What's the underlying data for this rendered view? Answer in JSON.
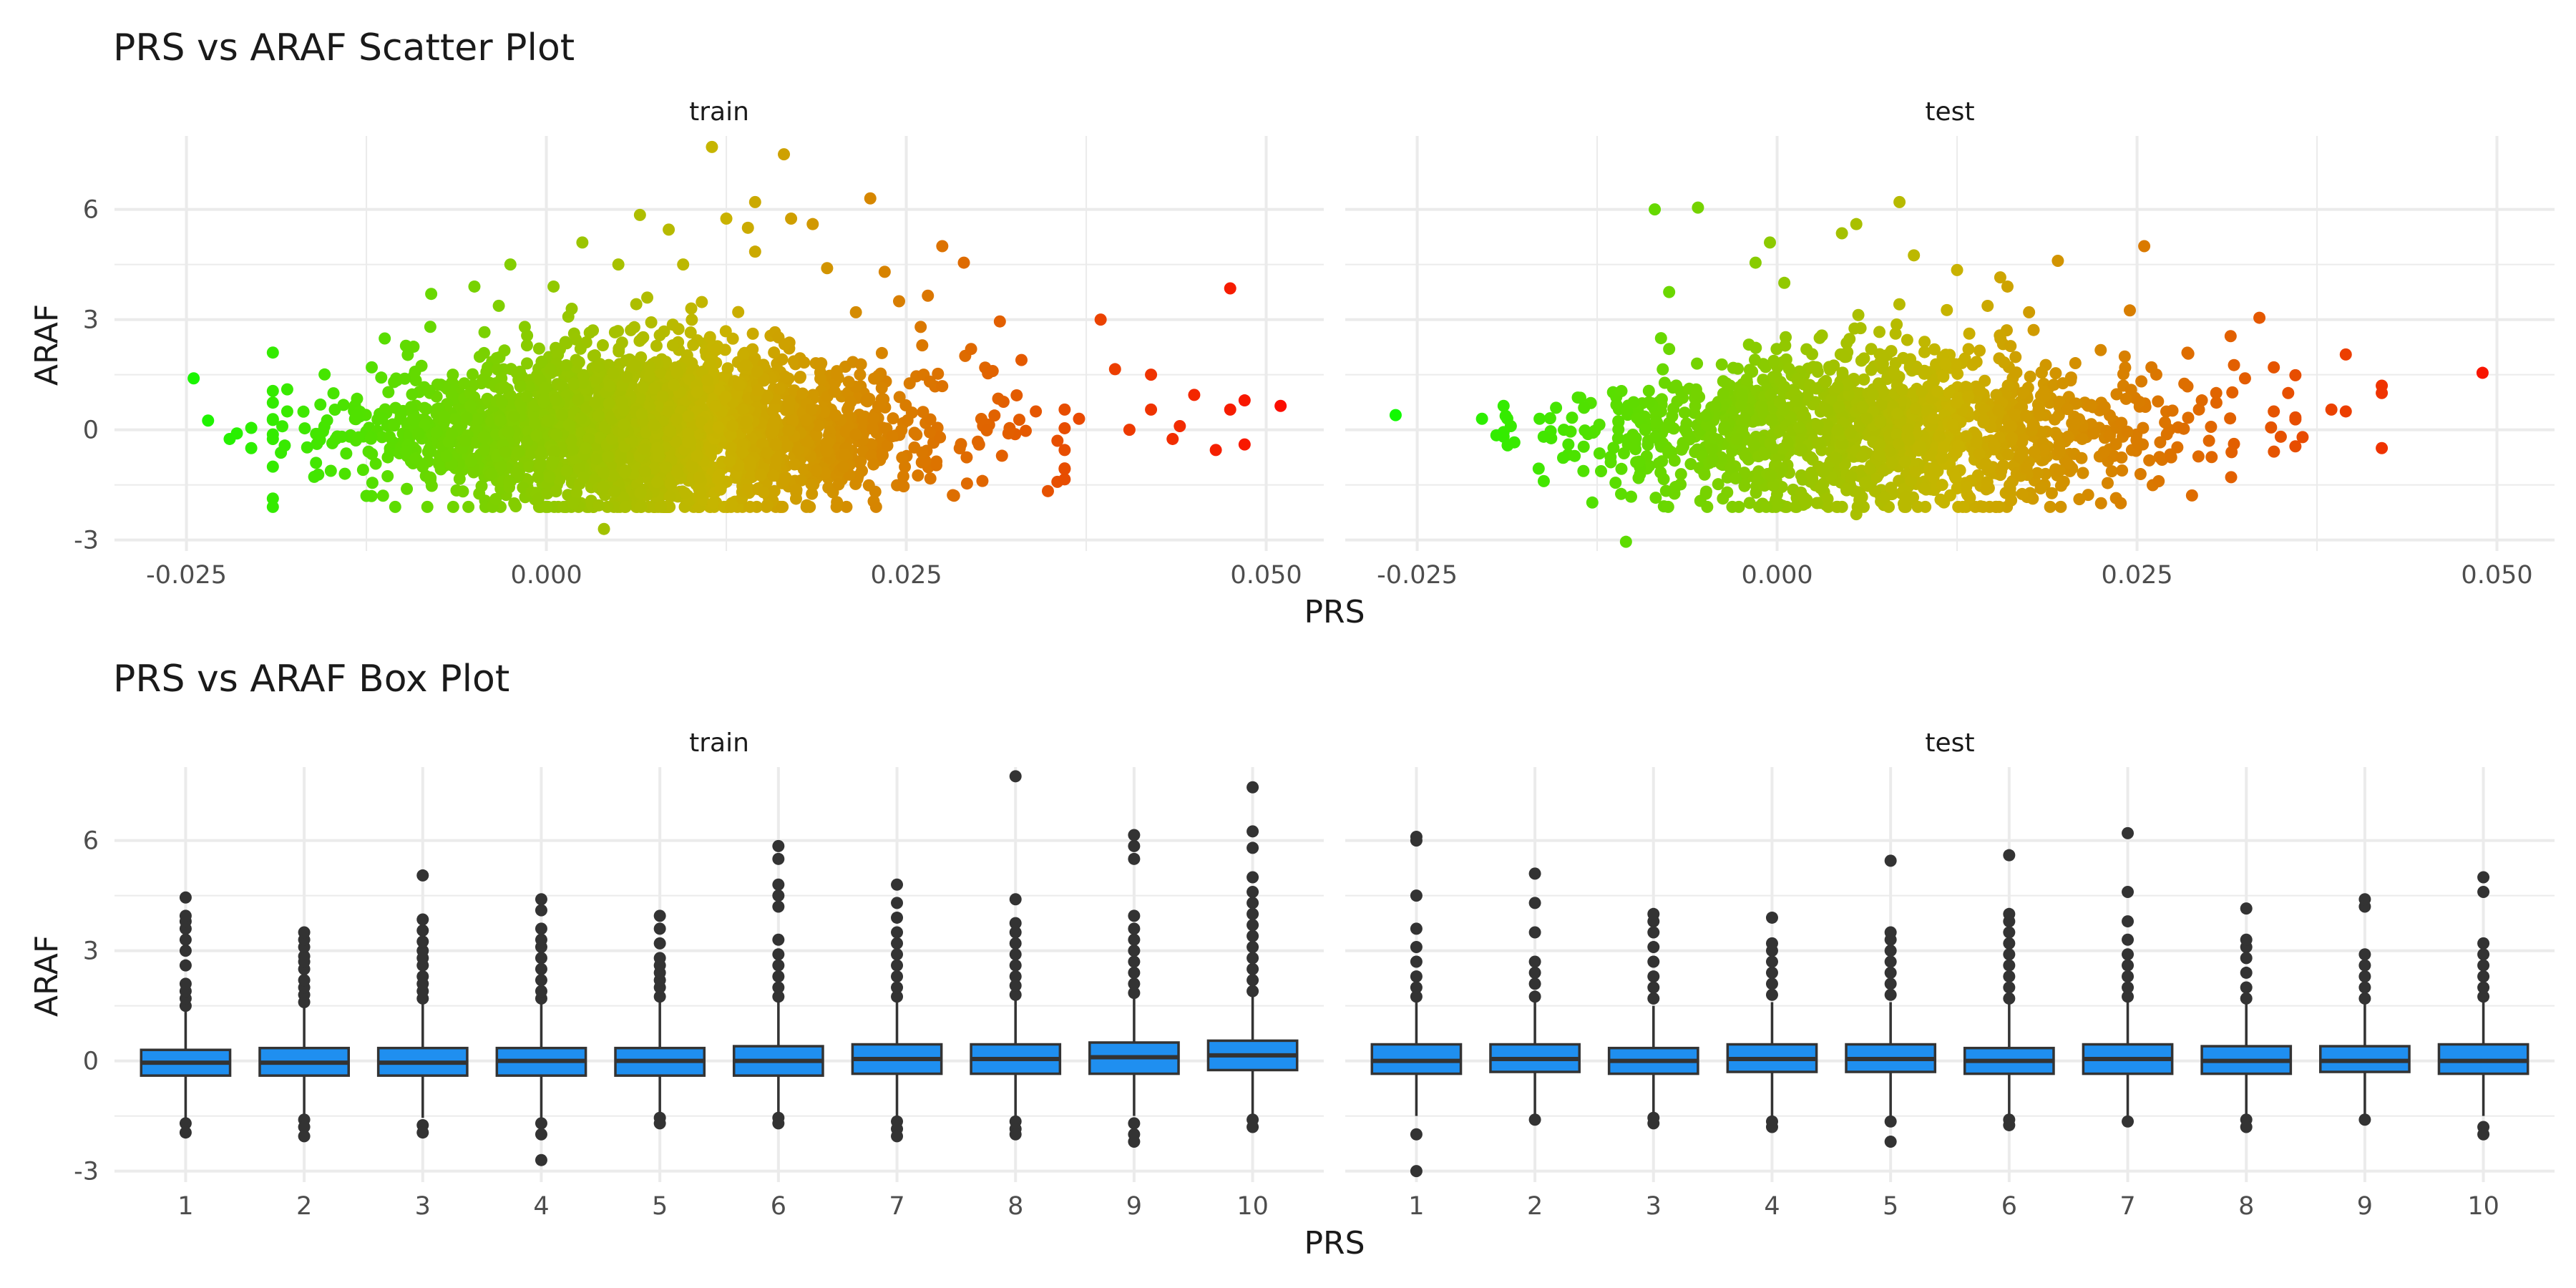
{
  "titles": {
    "scatter": "PRS vs ARAF Scatter Plot",
    "box": "PRS vs ARAF Box Plot"
  },
  "panels": {
    "train": "train",
    "test": "test"
  },
  "axes": {
    "x_label": "PRS",
    "y_label": "ARAF"
  },
  "colors": {
    "gradient_low": "#00ff00",
    "gradient_mid": "#c8b400",
    "gradient_high": "#ff0000",
    "box_fill": "#1f8ff0",
    "box_line": "#333333",
    "outlier": "#333333",
    "grid": "#ebebeb"
  },
  "chart_data": [
    {
      "type": "scatter",
      "title": "PRS vs ARAF Scatter Plot",
      "xlabel": "PRS",
      "ylabel": "ARAF",
      "facets": [
        "train",
        "test"
      ],
      "xlim": [
        -0.03,
        0.054
      ],
      "ylim": [
        -3.3,
        8.0
      ],
      "x_ticks": [
        -0.025,
        0.0,
        0.025,
        0.05
      ],
      "x_tick_labels": [
        "-0.025",
        "0.000",
        "0.025",
        "0.050"
      ],
      "y_ticks": [
        -3,
        0,
        3,
        6
      ],
      "y_tick_labels": [
        "-3",
        "0",
        "3",
        "6"
      ],
      "grid": true,
      "color_by": "PRS",
      "color_gradient": [
        "#00ff00",
        "#c8b400",
        "#ff0000"
      ],
      "series": [
        {
          "name": "train",
          "points": [
            [
              -0.0245,
              1.4
            ],
            [
              -0.0235,
              0.25
            ],
            [
              -0.022,
              -0.25
            ],
            [
              -0.0215,
              -0.1
            ],
            [
              -0.0205,
              -0.5
            ],
            [
              -0.0205,
              0.05
            ],
            [
              -0.018,
              0.5
            ],
            [
              -0.018,
              1.1
            ],
            [
              -0.016,
              -0.9
            ],
            [
              -0.0125,
              -1.8
            ],
            [
              -0.008,
              3.7
            ],
            [
              -0.0065,
              1.5
            ],
            [
              -0.005,
              3.9
            ],
            [
              -0.0025,
              4.5
            ],
            [
              -0.0015,
              2.8
            ],
            [
              0.0005,
              3.9
            ],
            [
              0.0025,
              5.1
            ],
            [
              0.004,
              -2.7
            ],
            [
              0.005,
              4.5
            ],
            [
              0.0065,
              5.85
            ],
            [
              0.0085,
              5.45
            ],
            [
              0.0095,
              4.5
            ],
            [
              0.0115,
              7.7
            ],
            [
              0.0125,
              5.75
            ],
            [
              0.014,
              5.5
            ],
            [
              0.0145,
              4.85
            ],
            [
              0.0145,
              6.2
            ],
            [
              0.0165,
              7.5
            ],
            [
              0.017,
              5.75
            ],
            [
              0.0185,
              5.6
            ],
            [
              0.0195,
              4.4
            ],
            [
              0.0225,
              6.3
            ],
            [
              0.0235,
              4.3
            ],
            [
              0.0245,
              3.5
            ],
            [
              0.0265,
              3.65
            ],
            [
              0.0275,
              5.0
            ],
            [
              0.029,
              4.55
            ],
            [
              0.0315,
              2.95
            ],
            [
              0.033,
              1.9
            ],
            [
              0.034,
              0.5
            ],
            [
              0.0385,
              3.0
            ],
            [
              0.0395,
              1.65
            ],
            [
              0.0405,
              0.0
            ],
            [
              0.042,
              1.5
            ],
            [
              0.042,
              0.55
            ],
            [
              0.0435,
              -0.25
            ],
            [
              0.044,
              0.1
            ],
            [
              0.045,
              0.95
            ],
            [
              0.0465,
              -0.55
            ],
            [
              0.0475,
              0.55
            ],
            [
              0.0475,
              3.85
            ],
            [
              0.0485,
              -0.4
            ],
            [
              0.0485,
              0.8
            ],
            [
              0.051,
              0.65
            ],
            [
              0.0355,
              -0.3
            ],
            [
              0.037,
              0.3
            ],
            [
              0.0295,
              2.2
            ],
            [
              0.031,
              1.6
            ],
            [
              0.026,
              2.8
            ],
            [
              0.0215,
              3.2
            ]
          ]
        },
        {
          "name": "test",
          "points": [
            [
              -0.0265,
              0.4
            ],
            [
              -0.0205,
              0.3
            ],
            [
              -0.0195,
              -0.15
            ],
            [
              -0.0185,
              0.1
            ],
            [
              -0.0165,
              0.3
            ],
            [
              -0.0145,
              -0.4
            ],
            [
              -0.0105,
              -3.05
            ],
            [
              -0.0085,
              6.0
            ],
            [
              -0.0075,
              3.75
            ],
            [
              -0.0075,
              2.2
            ],
            [
              -0.0055,
              6.05
            ],
            [
              -0.0045,
              -0.8
            ],
            [
              -0.0015,
              4.55
            ],
            [
              -0.0005,
              5.1
            ],
            [
              0.0005,
              4.0
            ],
            [
              0.002,
              -2.0
            ],
            [
              0.0045,
              5.35
            ],
            [
              0.0055,
              5.6
            ],
            [
              0.0055,
              -2.3
            ],
            [
              0.0085,
              6.2
            ],
            [
              0.0095,
              4.75
            ],
            [
              0.0125,
              4.35
            ],
            [
              0.0155,
              4.15
            ],
            [
              0.016,
              3.9
            ],
            [
              0.0175,
              3.2
            ],
            [
              0.0195,
              4.6
            ],
            [
              0.022,
              -0.1
            ],
            [
              0.0225,
              -2.0
            ],
            [
              0.0245,
              3.25
            ],
            [
              0.0255,
              5.0
            ],
            [
              0.026,
              1.7
            ],
            [
              0.0265,
              -1.4
            ],
            [
              0.0285,
              2.1
            ],
            [
              0.0295,
              0.8
            ],
            [
              0.03,
              -0.3
            ],
            [
              0.0315,
              2.55
            ],
            [
              0.0325,
              1.4
            ],
            [
              0.0335,
              3.05
            ],
            [
              0.0345,
              0.5
            ],
            [
              0.0355,
              1.0
            ],
            [
              0.0365,
              -0.2
            ],
            [
              0.0385,
              0.55
            ],
            [
              0.0395,
              2.05
            ],
            [
              0.0395,
              0.5
            ],
            [
              0.042,
              1.2
            ],
            [
              0.042,
              1.0
            ],
            [
              0.042,
              -0.5
            ],
            [
              0.049,
              1.55
            ],
            [
              0.0345,
              1.7
            ],
            [
              0.0305,
              1.0
            ]
          ]
        }
      ]
    },
    {
      "type": "box",
      "title": "PRS vs ARAF Box Plot",
      "xlabel": "PRS",
      "ylabel": "ARAF",
      "facets": [
        "train",
        "test"
      ],
      "categories": [
        "1",
        "2",
        "3",
        "4",
        "5",
        "6",
        "7",
        "8",
        "9",
        "10"
      ],
      "ylim": [
        -3.3,
        8.0
      ],
      "y_ticks": [
        -3,
        0,
        3,
        6
      ],
      "y_tick_labels": [
        "-3",
        "0",
        "3",
        "6"
      ],
      "grid": true,
      "series": [
        {
          "name": "train",
          "boxes": [
            {
              "q1": -0.4,
              "median": -0.05,
              "q3": 0.3,
              "whisker_low": -1.55,
              "whisker_high": 1.35,
              "outliers": [
                -1.7,
                -1.95,
                1.5,
                1.7,
                1.9,
                2.1,
                2.6,
                3.0,
                3.3,
                3.6,
                3.8,
                3.95,
                4.45
              ]
            },
            {
              "q1": -0.4,
              "median": -0.05,
              "q3": 0.35,
              "whisker_low": -1.45,
              "whisker_high": 1.5,
              "outliers": [
                -1.6,
                -1.8,
                -2.05,
                1.6,
                1.8,
                2.0,
                2.2,
                2.5,
                2.7,
                2.85,
                3.1,
                3.3,
                3.5
              ]
            },
            {
              "q1": -0.4,
              "median": -0.05,
              "q3": 0.35,
              "whisker_low": -1.55,
              "whisker_high": 1.6,
              "outliers": [
                -1.75,
                -1.95,
                1.7,
                1.9,
                2.1,
                2.3,
                2.6,
                2.8,
                3.0,
                3.25,
                3.55,
                3.85,
                5.05
              ]
            },
            {
              "q1": -0.4,
              "median": 0.0,
              "q3": 0.35,
              "whisker_low": -1.55,
              "whisker_high": 1.55,
              "outliers": [
                -1.7,
                -2.0,
                -2.7,
                1.7,
                1.9,
                2.2,
                2.5,
                2.8,
                3.1,
                3.3,
                3.6,
                4.1,
                4.4
              ]
            },
            {
              "q1": -0.4,
              "median": 0.0,
              "q3": 0.35,
              "whisker_low": -1.5,
              "whisker_high": 1.6,
              "outliers": [
                -1.55,
                -1.7,
                1.75,
                2.0,
                2.2,
                2.4,
                2.6,
                2.8,
                3.2,
                3.6,
                3.95
              ]
            },
            {
              "q1": -0.4,
              "median": 0.0,
              "q3": 0.4,
              "whisker_low": -1.5,
              "whisker_high": 1.6,
              "outliers": [
                -1.55,
                -1.7,
                1.75,
                2.0,
                2.3,
                2.6,
                2.9,
                3.3,
                4.2,
                4.5,
                4.8,
                5.5,
                5.85
              ]
            },
            {
              "q1": -0.35,
              "median": 0.05,
              "q3": 0.45,
              "whisker_low": -1.5,
              "whisker_high": 1.6,
              "outliers": [
                -1.65,
                -1.85,
                -2.05,
                1.75,
                2.0,
                2.3,
                2.6,
                2.9,
                3.2,
                3.5,
                3.9,
                4.3,
                4.8
              ]
            },
            {
              "q1": -0.35,
              "median": 0.05,
              "q3": 0.45,
              "whisker_low": -1.55,
              "whisker_high": 1.65,
              "outliers": [
                -1.65,
                -1.85,
                -2.0,
                1.8,
                2.05,
                2.3,
                2.6,
                2.9,
                3.2,
                3.5,
                3.75,
                4.4,
                7.75
              ]
            },
            {
              "q1": -0.35,
              "median": 0.1,
              "q3": 0.5,
              "whisker_low": -1.5,
              "whisker_high": 1.7,
              "outliers": [
                -1.7,
                -2.0,
                -2.2,
                1.85,
                2.1,
                2.4,
                2.7,
                3.0,
                3.3,
                3.6,
                3.95,
                5.5,
                5.85,
                6.15
              ]
            },
            {
              "q1": -0.25,
              "median": 0.15,
              "q3": 0.55,
              "whisker_low": -1.45,
              "whisker_high": 1.75,
              "outliers": [
                -1.6,
                -1.8,
                1.9,
                2.2,
                2.5,
                2.8,
                3.1,
                3.4,
                3.7,
                4.0,
                4.3,
                4.6,
                5.0,
                5.8,
                6.25,
                7.45
              ]
            }
          ]
        },
        {
          "name": "test",
          "boxes": [
            {
              "q1": -0.35,
              "median": 0.0,
              "q3": 0.45,
              "whisker_low": -1.5,
              "whisker_high": 1.6,
              "outliers": [
                -2.0,
                -3.0,
                1.75,
                2.0,
                2.3,
                2.7,
                3.1,
                3.6,
                4.5,
                6.0,
                6.1
              ]
            },
            {
              "q1": -0.3,
              "median": 0.05,
              "q3": 0.45,
              "whisker_low": -1.5,
              "whisker_high": 1.6,
              "outliers": [
                -1.6,
                1.75,
                2.1,
                2.4,
                2.7,
                3.5,
                4.3,
                5.1
              ]
            },
            {
              "q1": -0.35,
              "median": 0.0,
              "q3": 0.35,
              "whisker_low": -1.4,
              "whisker_high": 1.5,
              "outliers": [
                -1.55,
                -1.7,
                1.7,
                2.0,
                2.3,
                2.7,
                3.1,
                3.5,
                3.8,
                4.0
              ]
            },
            {
              "q1": -0.3,
              "median": 0.05,
              "q3": 0.45,
              "whisker_low": -1.5,
              "whisker_high": 1.6,
              "outliers": [
                -1.65,
                -1.8,
                1.8,
                2.1,
                2.4,
                2.7,
                3.0,
                3.2,
                3.9
              ]
            },
            {
              "q1": -0.3,
              "median": 0.05,
              "q3": 0.45,
              "whisker_low": -1.5,
              "whisker_high": 1.6,
              "outliers": [
                -1.65,
                -2.2,
                1.8,
                2.1,
                2.4,
                2.7,
                3.0,
                3.3,
                3.5,
                5.45
              ]
            },
            {
              "q1": -0.35,
              "median": 0.0,
              "q3": 0.35,
              "whisker_low": -1.5,
              "whisker_high": 1.55,
              "outliers": [
                -1.6,
                -1.75,
                1.7,
                2.0,
                2.3,
                2.6,
                2.9,
                3.2,
                3.5,
                3.8,
                4.0,
                5.6
              ]
            },
            {
              "q1": -0.35,
              "median": 0.05,
              "q3": 0.45,
              "whisker_low": -1.5,
              "whisker_high": 1.6,
              "outliers": [
                -1.65,
                1.75,
                2.0,
                2.3,
                2.6,
                2.9,
                3.3,
                3.8,
                4.6,
                6.2
              ]
            },
            {
              "q1": -0.35,
              "median": 0.0,
              "q3": 0.4,
              "whisker_low": -1.5,
              "whisker_high": 1.55,
              "outliers": [
                -1.6,
                -1.8,
                1.7,
                2.0,
                2.4,
                2.8,
                3.1,
                3.3,
                4.15
              ]
            },
            {
              "q1": -0.3,
              "median": 0.0,
              "q3": 0.4,
              "whisker_low": -1.45,
              "whisker_high": 1.55,
              "outliers": [
                -1.6,
                1.7,
                2.0,
                2.3,
                2.6,
                2.9,
                4.2,
                4.4
              ]
            },
            {
              "q1": -0.35,
              "median": 0.0,
              "q3": 0.45,
              "whisker_low": -1.5,
              "whisker_high": 1.6,
              "outliers": [
                -1.8,
                -2.0,
                1.75,
                2.0,
                2.3,
                2.6,
                2.9,
                3.2,
                4.6,
                5.0
              ]
            }
          ]
        }
      ]
    }
  ]
}
